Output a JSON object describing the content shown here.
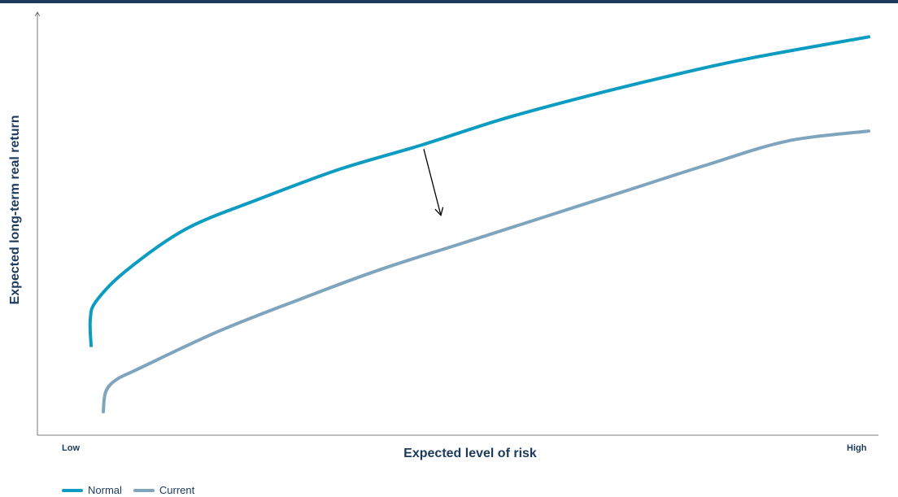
{
  "chart_data": {
    "type": "line",
    "title": "",
    "xlabel": "Expected level of risk",
    "ylabel": "Expected long-term real return",
    "x_tick_labels": [
      "Low",
      "High"
    ],
    "xlim": [
      0,
      100
    ],
    "ylim": [
      0,
      100
    ],
    "grid": false,
    "legend_position": "bottom-left",
    "series": [
      {
        "name": "Normal",
        "color": "#0c9bc1",
        "x": [
          4.4,
          4.3,
          5.0,
          8.6,
          16,
          25,
          35,
          45,
          55,
          65,
          75,
          85,
          100
        ],
        "y": [
          19.5,
          26,
          30.5,
          38,
          48.5,
          56,
          63.5,
          69.5,
          76,
          81.5,
          86.5,
          91,
          96.5
        ]
      },
      {
        "name": "Current",
        "color": "#7fa4bd",
        "x": [
          5.9,
          6.2,
          7.5,
          10,
          20,
          30,
          40,
          50,
          60,
          70,
          80,
          90,
          100
        ],
        "y": [
          3,
          8,
          11,
          13.5,
          23,
          31,
          38.5,
          45,
          51.5,
          58,
          64.5,
          70.5,
          73
        ]
      }
    ],
    "annotations": [
      {
        "type": "arrow",
        "from": [
          45.3,
          68.5
        ],
        "to": [
          47.4,
          52
        ]
      }
    ]
  }
}
